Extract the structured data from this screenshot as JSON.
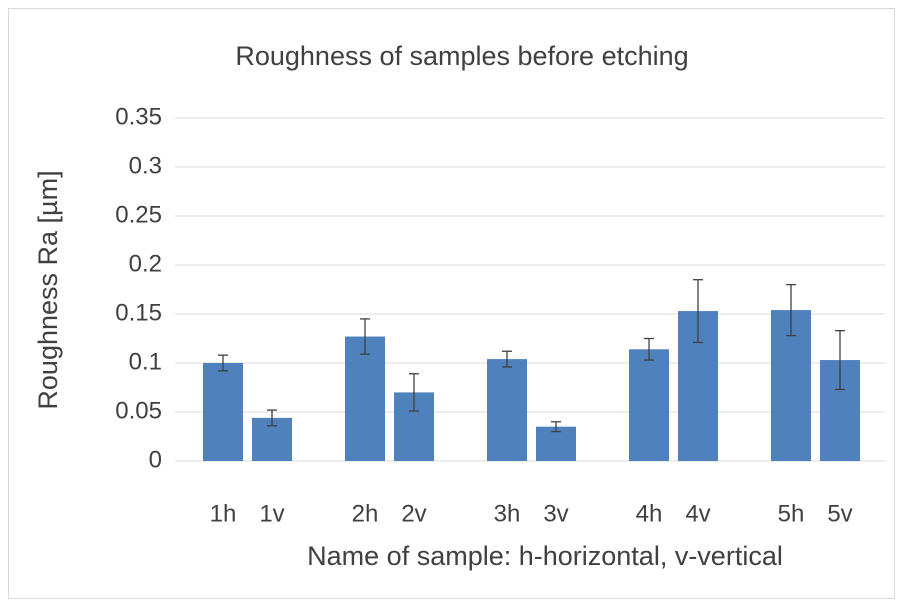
{
  "chart_data": {
    "type": "bar",
    "title": "Roughness of samples before etching",
    "x_label": "Name of sample: h-horizontal, v-vertical",
    "y_label": "Roughness Ra [µm]",
    "categories": [
      "1h",
      "1v",
      "2h",
      "2v",
      "3h",
      "3v",
      "4h",
      "4v",
      "5h",
      "5v"
    ],
    "values": [
      0.1,
      0.044,
      0.127,
      0.07,
      0.104,
      0.035,
      0.114,
      0.153,
      0.154,
      0.103
    ],
    "errors": [
      0.008,
      0.008,
      0.018,
      0.019,
      0.008,
      0.005,
      0.011,
      0.032,
      0.026,
      0.03
    ],
    "color": "#4f81bd",
    "ylim": [
      0,
      0.35
    ],
    "yticks": [
      0,
      0.05,
      0.1,
      0.15,
      0.2,
      0.25,
      0.3,
      0.35
    ],
    "grid": true
  }
}
